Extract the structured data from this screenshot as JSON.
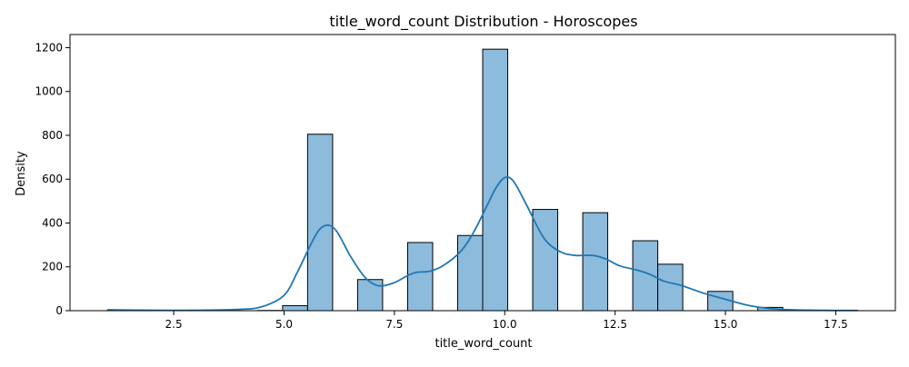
{
  "chart_data": {
    "type": "bar",
    "title": "title_word_count Distribution - Horoscopes",
    "xlabel": "title_word_count",
    "ylabel": "Density",
    "xlim": [
      0.15,
      18.85
    ],
    "ylim": [
      0,
      1260
    ],
    "xticks": [
      2.5,
      5.0,
      7.5,
      10.0,
      12.5,
      15.0,
      17.5
    ],
    "xtick_labels": [
      "2.5",
      "5.0",
      "7.5",
      "10.0",
      "12.5",
      "15.0",
      "17.5"
    ],
    "yticks": [
      0,
      200,
      400,
      600,
      800,
      1000,
      1200
    ],
    "ytick_labels": [
      "0",
      "200",
      "400",
      "600",
      "800",
      "1000",
      "1200"
    ],
    "grid": false,
    "legend": false,
    "colors": {
      "bar_fill": "#8dbbdc",
      "bar_edge": "#000000",
      "kde_line": "#1f77b4"
    },
    "bins": [
      {
        "x0": 1.0,
        "x1": 1.567,
        "value": 3
      },
      {
        "x0": 4.4,
        "x1": 4.967,
        "value": 1
      },
      {
        "x0": 4.967,
        "x1": 5.533,
        "value": 23
      },
      {
        "x0": 5.533,
        "x1": 6.1,
        "value": 805
      },
      {
        "x0": 6.667,
        "x1": 7.233,
        "value": 142
      },
      {
        "x0": 7.8,
        "x1": 8.367,
        "value": 311
      },
      {
        "x0": 8.933,
        "x1": 9.5,
        "value": 343
      },
      {
        "x0": 9.5,
        "x1": 10.067,
        "value": 1193
      },
      {
        "x0": 10.633,
        "x1": 11.2,
        "value": 462
      },
      {
        "x0": 11.767,
        "x1": 12.333,
        "value": 447
      },
      {
        "x0": 12.9,
        "x1": 13.467,
        "value": 319
      },
      {
        "x0": 13.467,
        "x1": 14.033,
        "value": 212
      },
      {
        "x0": 14.6,
        "x1": 15.167,
        "value": 88
      },
      {
        "x0": 15.733,
        "x1": 16.3,
        "value": 15
      },
      {
        "x0": 17.433,
        "x1": 18.0,
        "value": 1
      }
    ],
    "kde": {
      "x": [
        1.0,
        2.0,
        3.0,
        4.0,
        4.5,
        5.0,
        5.3,
        5.6,
        5.8,
        6.0,
        6.2,
        6.5,
        6.8,
        7.0,
        7.2,
        7.5,
        7.8,
        8.0,
        8.3,
        8.6,
        9.0,
        9.3,
        9.6,
        9.8,
        10.0,
        10.2,
        10.5,
        10.8,
        11.0,
        11.3,
        11.6,
        12.0,
        12.3,
        12.6,
        13.0,
        13.3,
        13.6,
        14.0,
        14.5,
        15.0,
        15.5,
        16.0,
        16.5,
        17.0,
        17.5,
        18.0
      ],
      "y": [
        4,
        2,
        2,
        6,
        18,
        70,
        175,
        300,
        370,
        390,
        360,
        250,
        160,
        125,
        113,
        128,
        160,
        175,
        180,
        205,
        270,
        360,
        480,
        560,
        607,
        590,
        480,
        360,
        305,
        265,
        252,
        252,
        235,
        205,
        185,
        165,
        135,
        115,
        80,
        52,
        25,
        10,
        4,
        2,
        1,
        1
      ]
    }
  }
}
